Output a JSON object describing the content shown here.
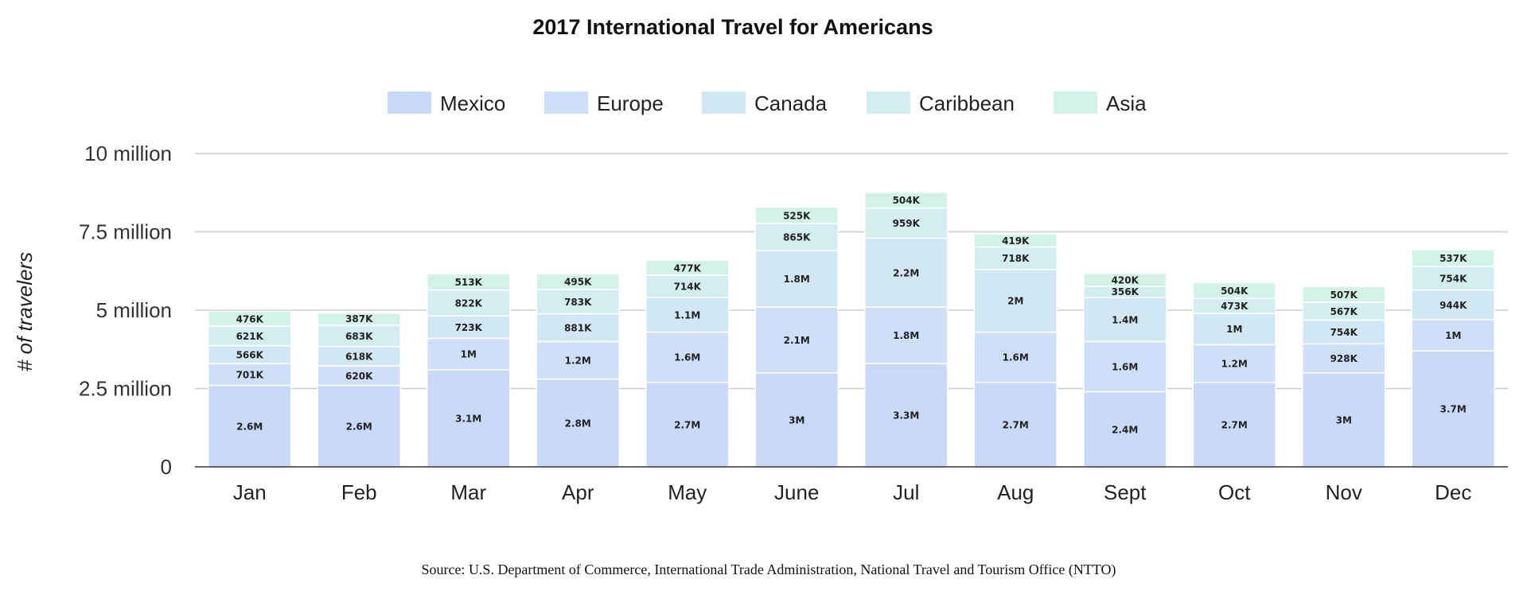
{
  "chart_data": {
    "type": "bar",
    "stacked": true,
    "title": "2017 International Travel for Americans",
    "ylabel": "# of travelers",
    "xlabel": "",
    "ylim": [
      0,
      10000000
    ],
    "yticks": [
      {
        "value": 0,
        "label": "0"
      },
      {
        "value": 2500000,
        "label": "2.5 million"
      },
      {
        "value": 5000000,
        "label": "5 million"
      },
      {
        "value": 7500000,
        "label": "7.5 million"
      },
      {
        "value": 10000000,
        "label": "10 million"
      }
    ],
    "grid": true,
    "legend_position": "top",
    "categories": [
      "Jan",
      "Feb",
      "Mar",
      "Apr",
      "May",
      "June",
      "Jul",
      "Aug",
      "Sept",
      "Oct",
      "Nov",
      "Dec"
    ],
    "series": [
      {
        "name": "Mexico",
        "color": "#c9daf8",
        "values": [
          2600000,
          2600000,
          3100000,
          2800000,
          2700000,
          3000000,
          3300000,
          2700000,
          2400000,
          2700000,
          3000000,
          3700000
        ],
        "labels": [
          "2.6M",
          "2.6M",
          "3.1M",
          "2.8M",
          "2.7M",
          "3M",
          "3.3M",
          "2.7M",
          "2.4M",
          "2.7M",
          "3M",
          "3.7M"
        ]
      },
      {
        "name": "Europe",
        "color": "#cde0f7",
        "values": [
          701000,
          620000,
          1000000,
          1200000,
          1600000,
          2100000,
          1800000,
          1600000,
          1600000,
          1200000,
          928000,
          1000000
        ],
        "labels": [
          "701K",
          "620K",
          "1M",
          "1.2M",
          "1.6M",
          "2.1M",
          "1.8M",
          "1.6M",
          "1.6M",
          "1.2M",
          "928K",
          "1M"
        ]
      },
      {
        "name": "Canada",
        "color": "#d2e7f4",
        "values": [
          566000,
          618000,
          723000,
          881000,
          1100000,
          1800000,
          2200000,
          2000000,
          1400000,
          1000000,
          754000,
          944000
        ],
        "labels": [
          "566K",
          "618K",
          "723K",
          "881K",
          "1.1M",
          "1.8M",
          "2.2M",
          "2M",
          "1.4M",
          "1M",
          "754K",
          "944K"
        ]
      },
      {
        "name": "Caribbean",
        "color": "#d3eef0",
        "values": [
          621000,
          683000,
          822000,
          783000,
          714000,
          865000,
          959000,
          718000,
          356000,
          473000,
          567000,
          754000
        ],
        "labels": [
          "621K",
          "683K",
          "822K",
          "783K",
          "714K",
          "865K",
          "959K",
          "718K",
          "356K",
          "473K",
          "567K",
          "754K"
        ]
      },
      {
        "name": "Asia",
        "color": "#d3f3e8",
        "values": [
          476000,
          387000,
          513000,
          495000,
          477000,
          525000,
          504000,
          419000,
          420000,
          504000,
          507000,
          537000
        ],
        "labels": [
          "476K",
          "387K",
          "513K",
          "495K",
          "477K",
          "525K",
          "504K",
          "419K",
          "420K",
          "504K",
          "507K",
          "537K"
        ]
      }
    ]
  },
  "source": "Source: U.S. Department of Commerce, International Trade Administration, National Travel and Tourism Office (NTTO)"
}
